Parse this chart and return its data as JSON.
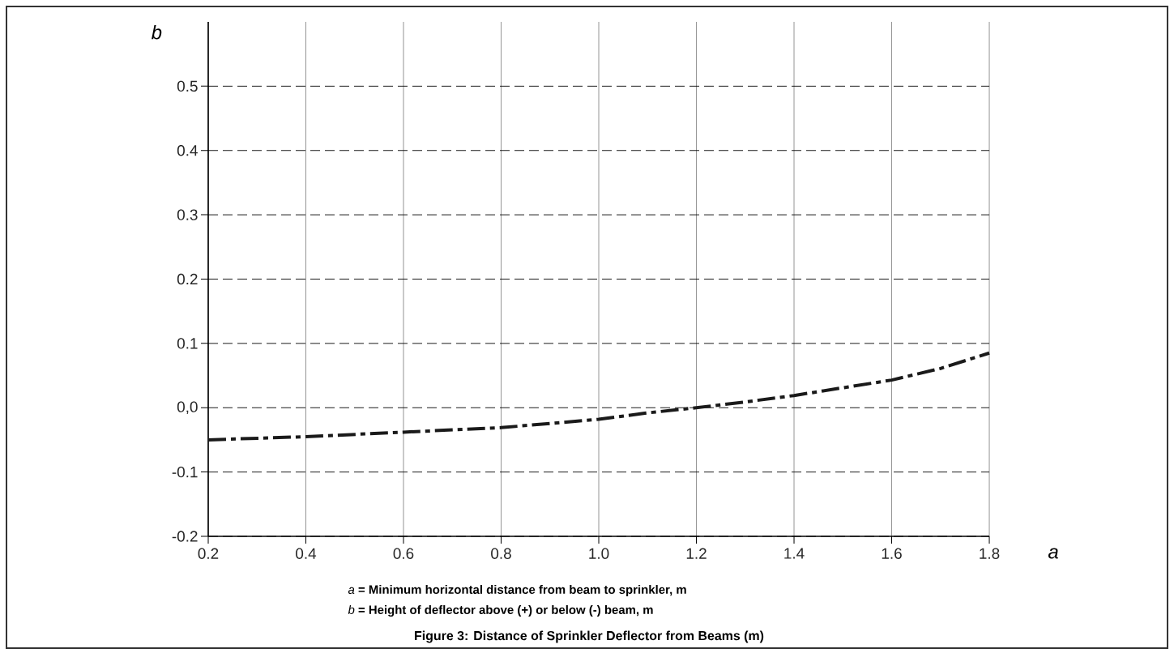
{
  "chart_data": {
    "type": "line",
    "title": "Figure 3: Distance of Sprinkler Deflector from Beams (m)",
    "xlabel": "a",
    "ylabel": "b",
    "annotations": [
      "*a* **= Minimum horizontal distance from beam to sprinkler, m**",
      "*b* **= Height of deflector above (+) or below (-) beam, m**"
    ],
    "x": [
      0.2,
      0.4,
      0.6,
      0.8,
      1.0,
      1.1,
      1.2,
      1.3,
      1.4,
      1.5,
      1.6,
      1.7,
      1.8
    ],
    "series": [
      {
        "color": "#1a1a1a",
        "values": [
          -0.05,
          -0.045,
          -0.038,
          -0.031,
          -0.018,
          -0.008,
          0.0,
          0.009,
          0.019,
          0.031,
          0.043,
          0.061,
          0.085
        ]
      }
    ],
    "xlim": [
      0.2,
      1.8
    ],
    "ylim": [
      -0.2,
      0.6
    ],
    "xticks": [
      0.2,
      0.4,
      0.6,
      0.8,
      {
        "value": 1,
        "label": "1.0"
      },
      1.2,
      1.4,
      1.6,
      1.8
    ],
    "yticks": [
      -0.2,
      -0.1,
      {
        "value": 0,
        "label": "0,0"
      },
      0.1,
      0.2,
      0.3,
      0.4,
      0.5
    ],
    "grid": true,
    "line_style": "dashed"
  }
}
